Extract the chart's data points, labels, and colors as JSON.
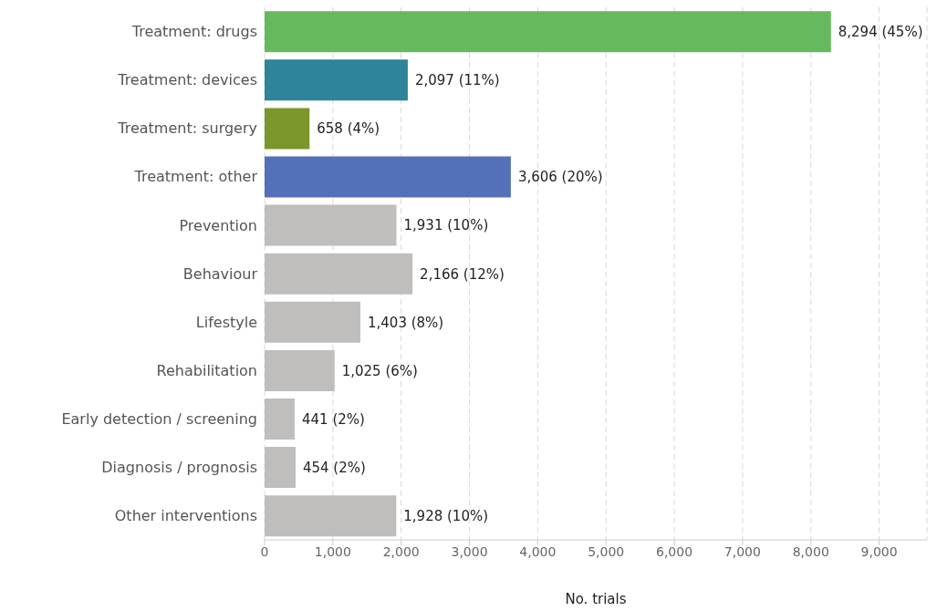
{
  "chart_data": {
    "type": "bar",
    "orientation": "horizontal",
    "xlabel": "No. trials",
    "categories": [
      "Treatment: drugs",
      "Treatment: devices",
      "Treatment: surgery",
      "Treatment: other",
      "Prevention",
      "Behaviour",
      "Lifestyle",
      "Rehabilitation",
      "Early detection / screening",
      "Diagnosis / prognosis",
      "Other interventions"
    ],
    "values": [
      8294,
      2097,
      658,
      3606,
      1931,
      2166,
      1403,
      1025,
      441,
      454,
      1928
    ],
    "value_labels": [
      "8,294 (45%)",
      "2,097 (11%)",
      "658 (4%)",
      "3,606 (20%)",
      "1,931 (10%)",
      "2,166 (12%)",
      "1,403 (8%)",
      "1,025 (6%)",
      "441 (2%)",
      "454 (2%)",
      "1,928 (10%)"
    ],
    "colors": [
      "#66b95e",
      "#2e849a",
      "#7b962a",
      "#5470b8",
      "#bfbebc",
      "#bfbebc",
      "#bfbebc",
      "#bfbebc",
      "#bfbebc",
      "#bfbebc",
      "#bfbebc"
    ],
    "xlim": [
      0,
      9700
    ],
    "xticks": [
      0,
      {
        "value": 1000,
        "label": "1,000"
      },
      {
        "value": 2000,
        "label": "2,000"
      },
      {
        "value": 3000,
        "label": "3,000"
      },
      {
        "value": 4000,
        "label": "4,000"
      },
      {
        "value": 5000,
        "label": "5,000"
      },
      {
        "value": 6000,
        "label": "6,000"
      },
      {
        "value": 7000,
        "label": "7,000"
      },
      {
        "value": 8000,
        "label": "8,000"
      },
      {
        "value": 9000,
        "label": "9,000"
      }
    ],
    "grid": "x",
    "legend": false
  }
}
